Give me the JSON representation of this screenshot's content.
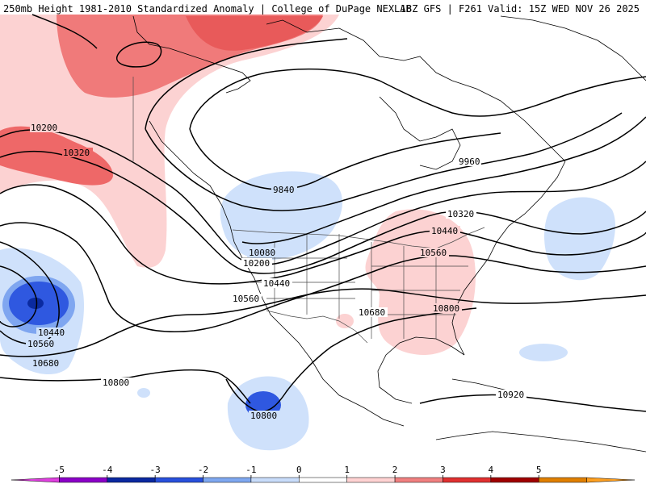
{
  "header": {
    "left_title": "250mb Height 1981-2010 Standardized Anomaly | College of DuPage NEXLAB",
    "right_title": "18Z GFS | F261 Valid: 15Z WED NOV 26 2025"
  },
  "contour_labels": [
    "10200",
    "10320",
    "9840",
    "9960",
    "10320",
    "10440",
    "10560",
    "10080",
    "10200",
    "10440",
    "10560",
    "10680",
    "10800",
    "10440",
    "10560",
    "10680",
    "10800",
    "10800",
    "10920"
  ],
  "colorbar": {
    "ticks": [
      "-5",
      "-4",
      "-3",
      "-2",
      "-1",
      "0",
      "1",
      "2",
      "3",
      "4",
      "5"
    ],
    "colors": [
      "#e040e0",
      "#8c00c8",
      "#0a28a0",
      "#2850dc",
      "#7fa8f0",
      "#c8dcfa",
      "#ffffff",
      "#ffd2d2",
      "#f08080",
      "#e03030",
      "#a00000",
      "#e08000",
      "#ffa020"
    ]
  },
  "anomaly_colors": {
    "weak_positive": "#fcd2d2",
    "positive": "#f48a8a",
    "strong_positive": "#ee5e5e",
    "weak_negative": "#cfe1fb",
    "negative": "#7fa6f0",
    "strong_negative": "#2f58e0",
    "extreme_negative": "#0a2aa0",
    "coast": "#000000",
    "border": "#4a4a4a"
  }
}
